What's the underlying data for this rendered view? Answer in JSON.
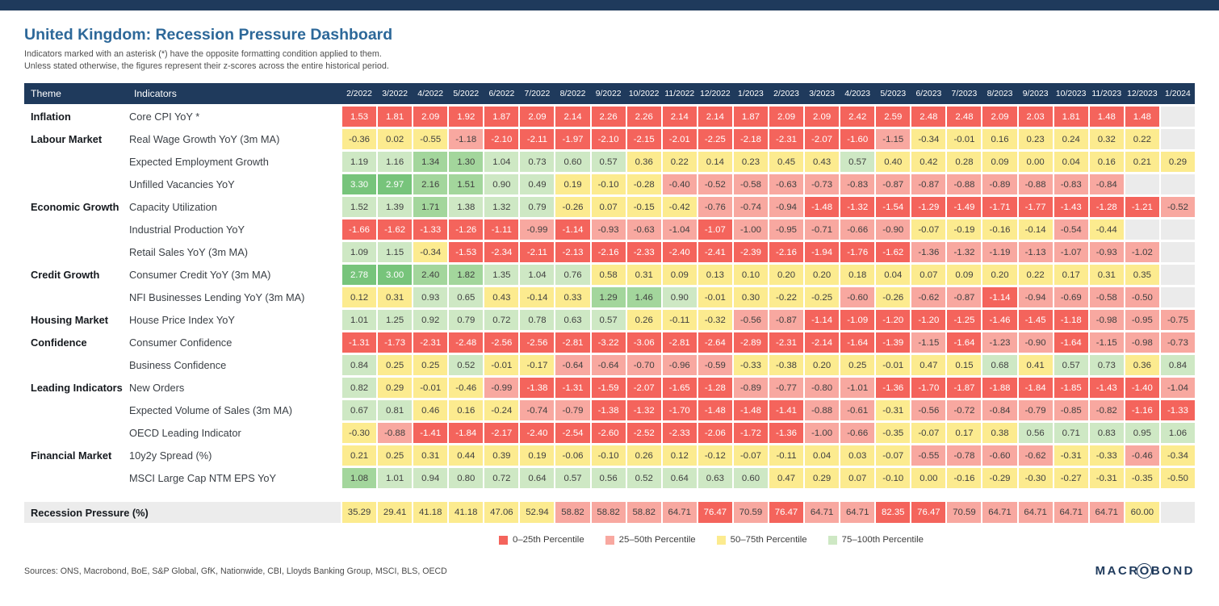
{
  "page": {
    "title": "United Kingdom: Recession Pressure Dashboard",
    "subtitle1": "Indicators marked with an asterisk (*) have the opposite formatting condition applied to them.",
    "subtitle2": "Unless stated otherwise, the figures represent their z-scores across the entire historical period.",
    "sources": "Sources: ONS, Macrobond, BoE, S&P Global, GfK, Nationwide, CBI, Lloyds Banking Group, MSCI, BLS, OECD",
    "logo": {
      "pre": "MACR",
      "o": "O",
      "post": "BOND"
    }
  },
  "chart_data": {
    "type": "heatmap",
    "title": "United Kingdom: Recession Pressure Dashboard",
    "col_headers": {
      "theme": "Theme",
      "indicators": "Indicators"
    },
    "x": [
      "2/2022",
      "3/2022",
      "4/2022",
      "5/2022",
      "6/2022",
      "7/2022",
      "8/2022",
      "9/2022",
      "10/2022",
      "11/2022",
      "12/2022",
      "1/2023",
      "2/2023",
      "3/2023",
      "4/2023",
      "5/2023",
      "6/2023",
      "7/2023",
      "8/2023",
      "9/2023",
      "10/2023",
      "11/2023",
      "12/2023",
      "1/2024"
    ],
    "palette": {
      "r": "#F4645C",
      "s": "#F8A8A0",
      "y": "#FCEB8F",
      "g": "#CEE8C4",
      "m": "#A3D69C",
      "G": "#77C47B",
      "e": "#EBEBEB"
    },
    "text_on": {
      "r": "#FFFFFF",
      "G": "#FFFFFF",
      "default": "#3F3F3F"
    },
    "rows": [
      {
        "theme": "Inflation",
        "indicator": "Core CPI YoY *",
        "values": [
          "1.53",
          "1.81",
          "2.09",
          "1.92",
          "1.87",
          "2.09",
          "2.14",
          "2.26",
          "2.26",
          "2.14",
          "2.14",
          "1.87",
          "2.09",
          "2.09",
          "2.42",
          "2.59",
          "2.48",
          "2.48",
          "2.09",
          "2.03",
          "1.81",
          "1.48",
          "1.48",
          null
        ],
        "colors": [
          "r",
          "r",
          "r",
          "r",
          "r",
          "r",
          "r",
          "r",
          "r",
          "r",
          "r",
          "r",
          "r",
          "r",
          "r",
          "r",
          "r",
          "r",
          "r",
          "r",
          "r",
          "r",
          "r",
          "e"
        ]
      },
      {
        "theme": "Labour Market",
        "indicator": "Real Wage Growth YoY (3m MA)",
        "values": [
          "-0.36",
          "0.02",
          "-0.55",
          "-1.18",
          "-2.10",
          "-2.11",
          "-1.97",
          "-2.10",
          "-2.15",
          "-2.01",
          "-2.25",
          "-2.18",
          "-2.31",
          "-2.07",
          "-1.60",
          "-1.15",
          "-0.34",
          "-0.01",
          "0.16",
          "0.23",
          "0.24",
          "0.32",
          "0.22",
          null
        ],
        "colors": [
          "y",
          "y",
          "y",
          "s",
          "r",
          "r",
          "r",
          "r",
          "r",
          "r",
          "r",
          "r",
          "r",
          "r",
          "r",
          "s",
          "y",
          "y",
          "y",
          "y",
          "y",
          "y",
          "y",
          "e"
        ]
      },
      {
        "theme": "",
        "indicator": "Expected Employment Growth",
        "values": [
          "1.19",
          "1.16",
          "1.34",
          "1.30",
          "1.04",
          "0.73",
          "0.60",
          "0.57",
          "0.36",
          "0.22",
          "0.14",
          "0.23",
          "0.45",
          "0.43",
          "0.57",
          "0.40",
          "0.42",
          "0.28",
          "0.09",
          "0.00",
          "0.04",
          "0.16",
          "0.21",
          "0.29"
        ],
        "colors": [
          "g",
          "g",
          "m",
          "m",
          "g",
          "g",
          "g",
          "g",
          "y",
          "y",
          "y",
          "y",
          "y",
          "y",
          "g",
          "y",
          "y",
          "y",
          "y",
          "y",
          "y",
          "y",
          "y",
          "y"
        ]
      },
      {
        "theme": "",
        "indicator": "Unfilled Vacancies YoY",
        "values": [
          "3.30",
          "2.97",
          "2.16",
          "1.51",
          "0.90",
          "0.49",
          "0.19",
          "-0.10",
          "-0.28",
          "-0.40",
          "-0.52",
          "-0.58",
          "-0.63",
          "-0.73",
          "-0.83",
          "-0.87",
          "-0.87",
          "-0.88",
          "-0.89",
          "-0.88",
          "-0.83",
          "-0.84",
          null,
          null
        ],
        "colors": [
          "G",
          "G",
          "m",
          "m",
          "g",
          "g",
          "y",
          "y",
          "y",
          "s",
          "s",
          "s",
          "s",
          "s",
          "s",
          "s",
          "s",
          "s",
          "s",
          "s",
          "s",
          "s",
          "e",
          "e"
        ]
      },
      {
        "theme": "Economic Growth",
        "indicator": "Capacity Utilization",
        "values": [
          "1.52",
          "1.39",
          "1.71",
          "1.38",
          "1.32",
          "0.79",
          "-0.26",
          "0.07",
          "-0.15",
          "-0.42",
          "-0.76",
          "-0.74",
          "-0.94",
          "-1.48",
          "-1.32",
          "-1.54",
          "-1.29",
          "-1.49",
          "-1.71",
          "-1.77",
          "-1.43",
          "-1.28",
          "-1.21",
          "-0.52"
        ],
        "colors": [
          "g",
          "g",
          "m",
          "g",
          "g",
          "g",
          "y",
          "y",
          "y",
          "y",
          "s",
          "s",
          "s",
          "r",
          "r",
          "r",
          "r",
          "r",
          "r",
          "r",
          "r",
          "r",
          "r",
          "s"
        ]
      },
      {
        "theme": "",
        "indicator": "Industrial Production YoY",
        "values": [
          "-1.66",
          "-1.62",
          "-1.33",
          "-1.26",
          "-1.11",
          "-0.99",
          "-1.14",
          "-0.93",
          "-0.63",
          "-1.04",
          "-1.07",
          "-1.00",
          "-0.95",
          "-0.71",
          "-0.66",
          "-0.90",
          "-0.07",
          "-0.19",
          "-0.16",
          "-0.14",
          "-0.54",
          "-0.44",
          null,
          null
        ],
        "colors": [
          "r",
          "r",
          "r",
          "r",
          "r",
          "s",
          "r",
          "s",
          "s",
          "s",
          "r",
          "s",
          "s",
          "s",
          "s",
          "s",
          "y",
          "y",
          "y",
          "y",
          "s",
          "y",
          "e",
          "e"
        ]
      },
      {
        "theme": "",
        "indicator": "Retail Sales YoY (3m MA)",
        "values": [
          "1.09",
          "1.15",
          "-0.34",
          "-1.53",
          "-2.34",
          "-2.11",
          "-2.13",
          "-2.16",
          "-2.33",
          "-2.40",
          "-2.41",
          "-2.39",
          "-2.16",
          "-1.94",
          "-1.76",
          "-1.62",
          "-1.36",
          "-1.32",
          "-1.19",
          "-1.13",
          "-1.07",
          "-0.93",
          "-1.02",
          null
        ],
        "colors": [
          "g",
          "g",
          "y",
          "r",
          "r",
          "r",
          "r",
          "r",
          "r",
          "r",
          "r",
          "r",
          "r",
          "r",
          "r",
          "r",
          "s",
          "s",
          "s",
          "s",
          "s",
          "s",
          "s",
          "e"
        ]
      },
      {
        "theme": "Credit Growth",
        "indicator": "Consumer Credit YoY (3m MA)",
        "values": [
          "2.78",
          "3.00",
          "2.40",
          "1.82",
          "1.35",
          "1.04",
          "0.76",
          "0.58",
          "0.31",
          "0.09",
          "0.13",
          "0.10",
          "0.20",
          "0.20",
          "0.18",
          "0.04",
          "0.07",
          "0.09",
          "0.20",
          "0.22",
          "0.17",
          "0.31",
          "0.35",
          null
        ],
        "colors": [
          "G",
          "G",
          "m",
          "m",
          "g",
          "g",
          "g",
          "y",
          "y",
          "y",
          "y",
          "y",
          "y",
          "y",
          "y",
          "y",
          "y",
          "y",
          "y",
          "y",
          "y",
          "y",
          "y",
          "e"
        ]
      },
      {
        "theme": "",
        "indicator": "NFI Businesses Lending YoY (3m MA)",
        "values": [
          "0.12",
          "0.31",
          "0.93",
          "0.65",
          "0.43",
          "-0.14",
          "0.33",
          "1.29",
          "1.46",
          "0.90",
          "-0.01",
          "0.30",
          "-0.22",
          "-0.25",
          "-0.60",
          "-0.26",
          "-0.62",
          "-0.87",
          "-1.14",
          "-0.94",
          "-0.69",
          "-0.58",
          "-0.50",
          null
        ],
        "colors": [
          "y",
          "y",
          "g",
          "g",
          "y",
          "y",
          "y",
          "m",
          "m",
          "g",
          "y",
          "y",
          "y",
          "y",
          "s",
          "y",
          "s",
          "s",
          "r",
          "s",
          "s",
          "s",
          "s",
          "e"
        ]
      },
      {
        "theme": "Housing Market",
        "indicator": "House Price Index YoY",
        "values": [
          "1.01",
          "1.25",
          "0.92",
          "0.79",
          "0.72",
          "0.78",
          "0.63",
          "0.57",
          "0.26",
          "-0.11",
          "-0.32",
          "-0.56",
          "-0.87",
          "-1.14",
          "-1.09",
          "-1.20",
          "-1.20",
          "-1.25",
          "-1.46",
          "-1.45",
          "-1.18",
          "-0.98",
          "-0.95",
          "-0.75"
        ],
        "colors": [
          "g",
          "g",
          "g",
          "g",
          "g",
          "g",
          "g",
          "g",
          "y",
          "y",
          "y",
          "s",
          "s",
          "r",
          "r",
          "r",
          "r",
          "r",
          "r",
          "r",
          "r",
          "s",
          "s",
          "s"
        ]
      },
      {
        "theme": "Confidence",
        "indicator": "Consumer Confidence",
        "values": [
          "-1.31",
          "-1.73",
          "-2.31",
          "-2.48",
          "-2.56",
          "-2.56",
          "-2.81",
          "-3.22",
          "-3.06",
          "-2.81",
          "-2.64",
          "-2.89",
          "-2.31",
          "-2.14",
          "-1.64",
          "-1.39",
          "-1.15",
          "-1.64",
          "-1.23",
          "-0.90",
          "-1.64",
          "-1.15",
          "-0.98",
          "-0.73"
        ],
        "colors": [
          "r",
          "r",
          "r",
          "r",
          "r",
          "r",
          "r",
          "r",
          "r",
          "r",
          "r",
          "r",
          "r",
          "r",
          "r",
          "r",
          "s",
          "r",
          "s",
          "s",
          "r",
          "s",
          "s",
          "s"
        ]
      },
      {
        "theme": "",
        "indicator": "Business Confidence",
        "values": [
          "0.84",
          "0.25",
          "0.25",
          "0.52",
          "-0.01",
          "-0.17",
          "-0.64",
          "-0.64",
          "-0.70",
          "-0.96",
          "-0.59",
          "-0.33",
          "-0.38",
          "0.20",
          "0.25",
          "-0.01",
          "0.47",
          "0.15",
          "0.68",
          "0.41",
          "0.57",
          "0.73",
          "0.36",
          "0.84"
        ],
        "colors": [
          "g",
          "y",
          "y",
          "g",
          "y",
          "y",
          "s",
          "s",
          "s",
          "s",
          "s",
          "y",
          "y",
          "y",
          "y",
          "y",
          "y",
          "y",
          "g",
          "y",
          "g",
          "g",
          "y",
          "g"
        ]
      },
      {
        "theme": "Leading Indicators",
        "indicator": "New Orders",
        "values": [
          "0.82",
          "0.29",
          "-0.01",
          "-0.46",
          "-0.99",
          "-1.38",
          "-1.31",
          "-1.59",
          "-2.07",
          "-1.65",
          "-1.28",
          "-0.89",
          "-0.77",
          "-0.80",
          "-1.01",
          "-1.36",
          "-1.70",
          "-1.87",
          "-1.88",
          "-1.84",
          "-1.85",
          "-1.43",
          "-1.40",
          "-1.04"
        ],
        "colors": [
          "g",
          "y",
          "y",
          "y",
          "s",
          "r",
          "r",
          "r",
          "r",
          "r",
          "r",
          "s",
          "s",
          "s",
          "s",
          "r",
          "r",
          "r",
          "r",
          "r",
          "r",
          "r",
          "r",
          "s"
        ]
      },
      {
        "theme": "",
        "indicator": "Expected Volume of Sales (3m MA)",
        "values": [
          "0.67",
          "0.81",
          "0.46",
          "0.16",
          "-0.24",
          "-0.74",
          "-0.79",
          "-1.38",
          "-1.32",
          "-1.70",
          "-1.48",
          "-1.48",
          "-1.41",
          "-0.88",
          "-0.61",
          "-0.31",
          "-0.56",
          "-0.72",
          "-0.84",
          "-0.79",
          "-0.85",
          "-0.82",
          "-1.16",
          "-1.33"
        ],
        "colors": [
          "g",
          "g",
          "y",
          "y",
          "y",
          "s",
          "s",
          "r",
          "r",
          "r",
          "r",
          "r",
          "r",
          "s",
          "s",
          "y",
          "s",
          "s",
          "s",
          "s",
          "s",
          "s",
          "r",
          "r"
        ]
      },
      {
        "theme": "",
        "indicator": "OECD Leading Indicator",
        "values": [
          "-0.30",
          "-0.88",
          "-1.41",
          "-1.84",
          "-2.17",
          "-2.40",
          "-2.54",
          "-2.60",
          "-2.52",
          "-2.33",
          "-2.06",
          "-1.72",
          "-1.36",
          "-1.00",
          "-0.66",
          "-0.35",
          "-0.07",
          "0.17",
          "0.38",
          "0.56",
          "0.71",
          "0.83",
          "0.95",
          "1.06"
        ],
        "colors": [
          "y",
          "s",
          "r",
          "r",
          "r",
          "r",
          "r",
          "r",
          "r",
          "r",
          "r",
          "r",
          "r",
          "s",
          "s",
          "y",
          "y",
          "y",
          "y",
          "g",
          "g",
          "g",
          "g",
          "g"
        ]
      },
      {
        "theme": "Financial Market",
        "indicator": "10y2y Spread (%)",
        "values": [
          "0.21",
          "0.25",
          "0.31",
          "0.44",
          "0.39",
          "0.19",
          "-0.06",
          "-0.10",
          "0.26",
          "0.12",
          "-0.12",
          "-0.07",
          "-0.11",
          "0.04",
          "0.03",
          "-0.07",
          "-0.55",
          "-0.78",
          "-0.60",
          "-0.62",
          "-0.31",
          "-0.33",
          "-0.46",
          "-0.34"
        ],
        "colors": [
          "y",
          "y",
          "y",
          "y",
          "y",
          "y",
          "y",
          "y",
          "y",
          "y",
          "y",
          "y",
          "y",
          "y",
          "y",
          "y",
          "s",
          "s",
          "s",
          "s",
          "y",
          "y",
          "s",
          "y"
        ]
      },
      {
        "theme": "",
        "indicator": "MSCI Large Cap NTM EPS YoY",
        "values": [
          "1.08",
          "1.01",
          "0.94",
          "0.80",
          "0.72",
          "0.64",
          "0.57",
          "0.56",
          "0.52",
          "0.64",
          "0.63",
          "0.60",
          "0.47",
          "0.29",
          "0.07",
          "-0.10",
          "0.00",
          "-0.16",
          "-0.29",
          "-0.30",
          "-0.27",
          "-0.31",
          "-0.35",
          "-0.50"
        ],
        "colors": [
          "m",
          "g",
          "g",
          "g",
          "g",
          "g",
          "g",
          "g",
          "g",
          "g",
          "g",
          "g",
          "y",
          "y",
          "y",
          "y",
          "y",
          "y",
          "y",
          "y",
          "y",
          "y",
          "y",
          "y"
        ]
      }
    ],
    "summary_row": {
      "label": "Recession Pressure (%)",
      "values": [
        "35.29",
        "29.41",
        "41.18",
        "41.18",
        "47.06",
        "52.94",
        "58.82",
        "58.82",
        "58.82",
        "64.71",
        "76.47",
        "70.59",
        "76.47",
        "64.71",
        "64.71",
        "82.35",
        "76.47",
        "70.59",
        "64.71",
        "64.71",
        "64.71",
        "64.71",
        "60.00",
        null
      ],
      "colors": [
        "y",
        "y",
        "y",
        "y",
        "y",
        "y",
        "s",
        "s",
        "s",
        "s",
        "r",
        "s",
        "r",
        "s",
        "s",
        "r",
        "r",
        "s",
        "s",
        "s",
        "s",
        "s",
        "y",
        "e"
      ]
    },
    "legend": [
      {
        "label": "0–25th Percentile",
        "color": "r"
      },
      {
        "label": "25–50th Percentile",
        "color": "s"
      },
      {
        "label": "50–75th Percentile",
        "color": "y"
      },
      {
        "label": "75–100th Percentile",
        "color": "g"
      }
    ]
  }
}
